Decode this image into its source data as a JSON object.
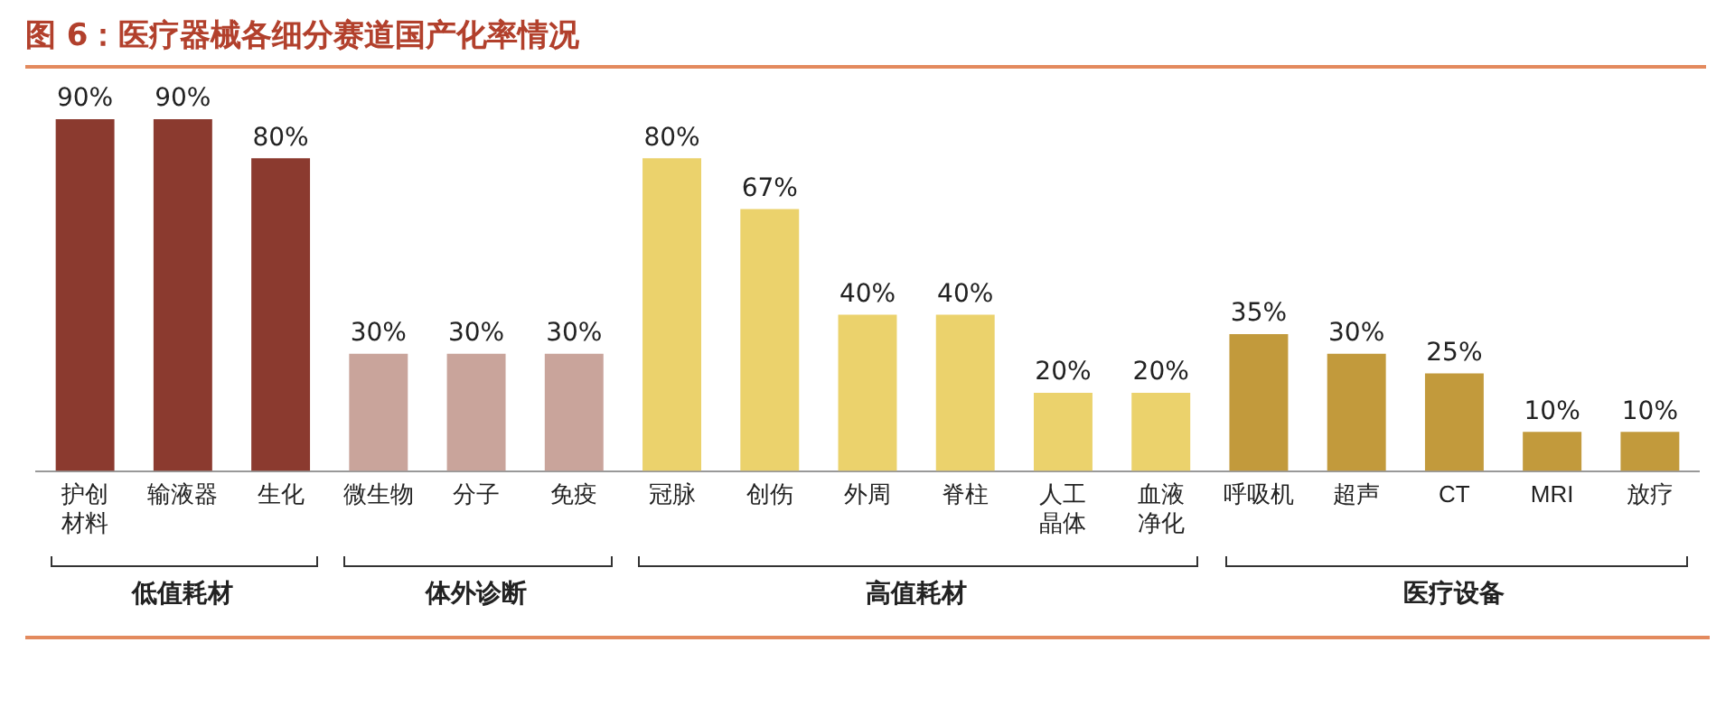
{
  "chart_data": {
    "type": "bar",
    "title": "图 6：医疗器械各细分赛道国产化率情况",
    "categories": [
      "护创材料",
      "输液器",
      "生化",
      "微生物",
      "分子",
      "免疫",
      "冠脉",
      "创伤",
      "外周",
      "脊柱",
      "人工晶体",
      "血液净化",
      "呼吸机",
      "超声",
      "CT",
      "MRI",
      "放疗"
    ],
    "values": [
      90,
      90,
      80,
      30,
      30,
      30,
      80,
      67,
      40,
      40,
      20,
      20,
      35,
      30,
      25,
      10,
      10
    ],
    "value_labels": [
      "90%",
      "90%",
      "80%",
      "30%",
      "30%",
      "30%",
      "80%",
      "67%",
      "40%",
      "40%",
      "20%",
      "20%",
      "35%",
      "30%",
      "25%",
      "10%",
      "10%"
    ],
    "colors": [
      "#8b3a2f",
      "#8b3a2f",
      "#8b3a2f",
      "#c9a49b",
      "#c9a49b",
      "#c9a49b",
      "#ebd26c",
      "#ebd26c",
      "#ebd26c",
      "#ebd26c",
      "#ebd26c",
      "#ebd26c",
      "#c29a3c",
      "#c29a3c",
      "#c29a3c",
      "#c29a3c",
      "#c29a3c"
    ],
    "annotations": [
      "低值耗材",
      "体外诊断",
      "高值耗材",
      "医疗设备"
    ],
    "grid": false,
    "legend": false
  }
}
